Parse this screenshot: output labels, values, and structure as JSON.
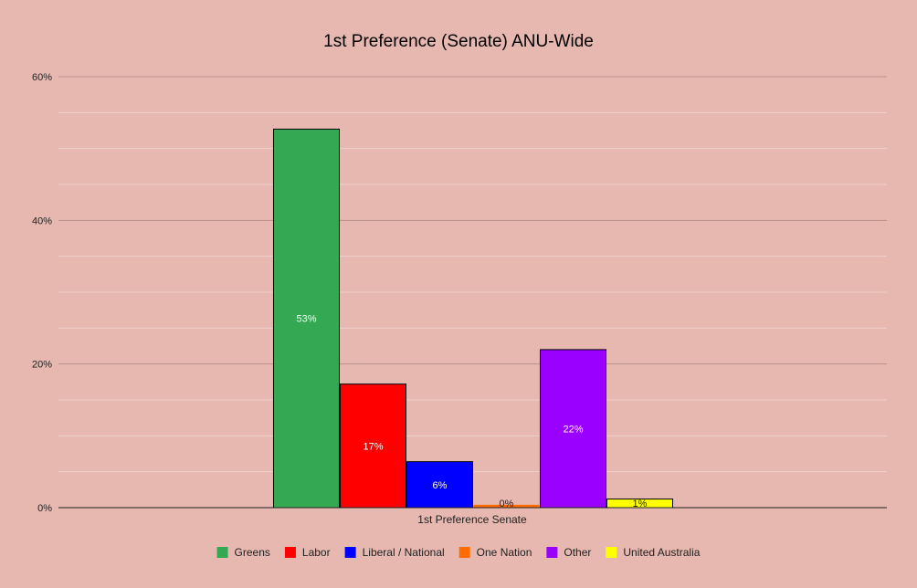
{
  "chart_data": {
    "type": "bar",
    "title": "1st Preference (Senate) ANU-Wide",
    "categories": [
      "1st Preference Senate"
    ],
    "ylim": [
      0,
      60
    ],
    "y_ticks": [
      "0%",
      "20%",
      "40%",
      "60%"
    ],
    "grid": true,
    "legend_position": "bottom",
    "series": [
      {
        "name": "Greens",
        "values": [
          52.7
        ],
        "label": "53%",
        "color": "#34a853",
        "label_color": "#ffffff"
      },
      {
        "name": "Labor",
        "values": [
          17.2
        ],
        "label": "17%",
        "color": "#ff0000",
        "label_color": "#ffffff"
      },
      {
        "name": "Liberal / National",
        "values": [
          6.4
        ],
        "label": "6%",
        "color": "#0000ff",
        "label_color": "#ffffff"
      },
      {
        "name": "One Nation",
        "values": [
          0.4
        ],
        "label": "0%",
        "color": "#ff6d01",
        "label_color": "#222222"
      },
      {
        "name": "Other",
        "values": [
          22.0
        ],
        "label": "22%",
        "color": "#9900ff",
        "label_color": "#ffffff"
      },
      {
        "name": "United Australia",
        "values": [
          1.2
        ],
        "label": "1%",
        "color": "#ffff00",
        "label_color": "#222222"
      }
    ]
  },
  "colors": {
    "background": "#e6b8b0",
    "gridline": "#b88f89",
    "minor_gridline": "#efd0ca"
  }
}
